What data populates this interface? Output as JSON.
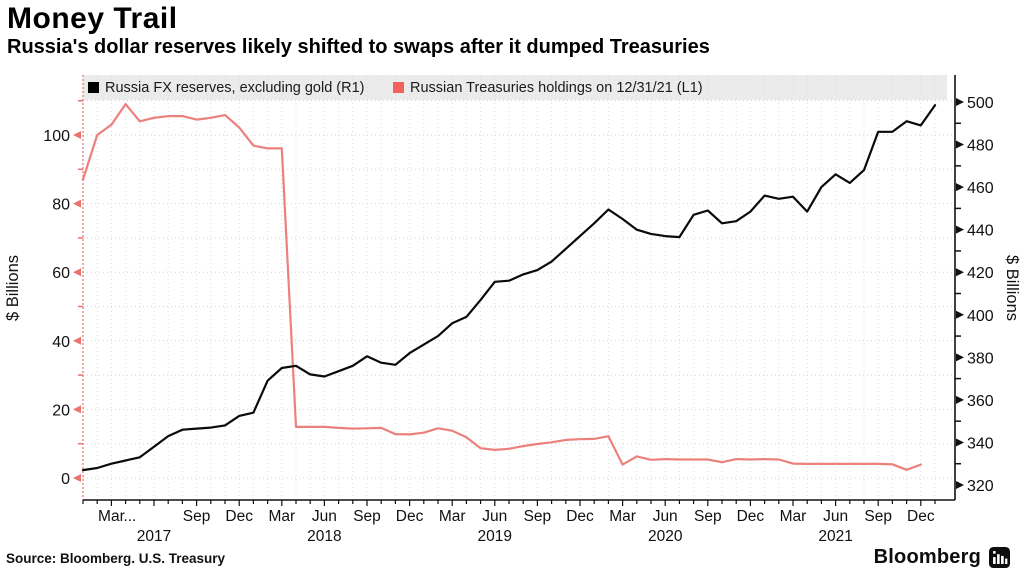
{
  "header": {
    "title": "Money Trail",
    "subtitle": "Russia's dollar reserves likely shifted to swaps after it dumped Treasuries"
  },
  "footer": {
    "source": "Source: Bloomberg. U.S. Treasury",
    "brand": "Bloomberg"
  },
  "chart_data": {
    "type": "line",
    "title": "Money Trail",
    "subtitle": "Russia's dollar reserves likely shifted to swaps after it dumped Treasuries",
    "grid": true,
    "legend_position": "top",
    "x_axis": {
      "start_label": "Jan 2017",
      "end_label": "Jan 2022",
      "months_total": 61,
      "quarter_labels": [
        {
          "i": 2,
          "t": "Mar"
        },
        {
          "i": 3.3,
          "t": "..."
        },
        {
          "i": 8,
          "t": "Sep"
        },
        {
          "i": 11,
          "t": "Dec"
        },
        {
          "i": 14,
          "t": "Mar"
        },
        {
          "i": 17,
          "t": "Jun"
        },
        {
          "i": 20,
          "t": "Sep"
        },
        {
          "i": 23,
          "t": "Dec"
        },
        {
          "i": 26,
          "t": "Mar"
        },
        {
          "i": 29,
          "t": "Jun"
        },
        {
          "i": 32,
          "t": "Sep"
        },
        {
          "i": 35,
          "t": "Dec"
        },
        {
          "i": 38,
          "t": "Mar"
        },
        {
          "i": 41,
          "t": "Jun"
        },
        {
          "i": 44,
          "t": "Sep"
        },
        {
          "i": 47,
          "t": "Dec"
        },
        {
          "i": 50,
          "t": "Mar"
        },
        {
          "i": 53,
          "t": "Jun"
        },
        {
          "i": 56,
          "t": "Sep"
        },
        {
          "i": 59,
          "t": "Dec"
        }
      ],
      "year_labels": [
        {
          "i": 5,
          "t": "2017"
        },
        {
          "i": 17,
          "t": "2018"
        },
        {
          "i": 29,
          "t": "2019"
        },
        {
          "i": 41,
          "t": "2020"
        },
        {
          "i": 53,
          "t": "2021"
        }
      ]
    },
    "left_axis": {
      "label": "$ Billions",
      "min": 0,
      "max": 110,
      "major_ticks": [
        0,
        20,
        40,
        60,
        80,
        100
      ],
      "minor_step": 10,
      "color": "#e8736f"
    },
    "right_axis": {
      "label": "$ Billions",
      "min": 315,
      "max": 503,
      "major_ticks": [
        320,
        340,
        360,
        380,
        400,
        420,
        440,
        460,
        480,
        500
      ],
      "minor_step": 10,
      "color": "#111111"
    },
    "series": [
      {
        "name": "Russian Treasuries holdings on 12/31/21 (L1)",
        "axis": "left",
        "color": "#ec807c",
        "swatch": "#f2615e",
        "values": [
          87,
          100,
          103,
          109,
          104,
          105,
          105.5,
          105.5,
          104.5,
          105,
          105.8,
          102.2,
          96.9,
          96.1,
          96.1,
          14.9,
          14.9,
          14.9,
          14.6,
          14.4,
          14.5,
          14.6,
          12.8,
          12.7,
          13.2,
          14.5,
          13.8,
          11.9,
          8.7,
          8.2,
          8.5,
          9.3,
          9.9,
          10.4,
          11.1,
          11.3,
          11.4,
          12.2,
          3.9,
          6.3,
          5.3,
          5.5,
          5.4,
          5.4,
          5.4,
          4.6,
          5.5,
          5.4,
          5.5,
          5.4,
          4.2,
          4.1,
          4.1,
          4.1,
          4.1,
          4.1,
          4.1,
          4.0,
          2.4,
          3.9
        ]
      },
      {
        "name": "Russia FX reserves, excluding gold (R1)",
        "axis": "right",
        "color": "#0a0a0a",
        "swatch": "#000000",
        "values": [
          327,
          328,
          330,
          331.5,
          333,
          338,
          343,
          346,
          346.5,
          347,
          348,
          352.5,
          354,
          369,
          375,
          376,
          372,
          371,
          373.5,
          376,
          380.5,
          377.5,
          376.5,
          382,
          386,
          390,
          396,
          399,
          407,
          415.5,
          416,
          419,
          421,
          425,
          431,
          437,
          443,
          449.5,
          445,
          440,
          438,
          437,
          436.5,
          447,
          449,
          443,
          444,
          448.5,
          456,
          454.5,
          455.5,
          448.5,
          460,
          466,
          462,
          468,
          486,
          486,
          491,
          489,
          498.5
        ]
      }
    ]
  }
}
